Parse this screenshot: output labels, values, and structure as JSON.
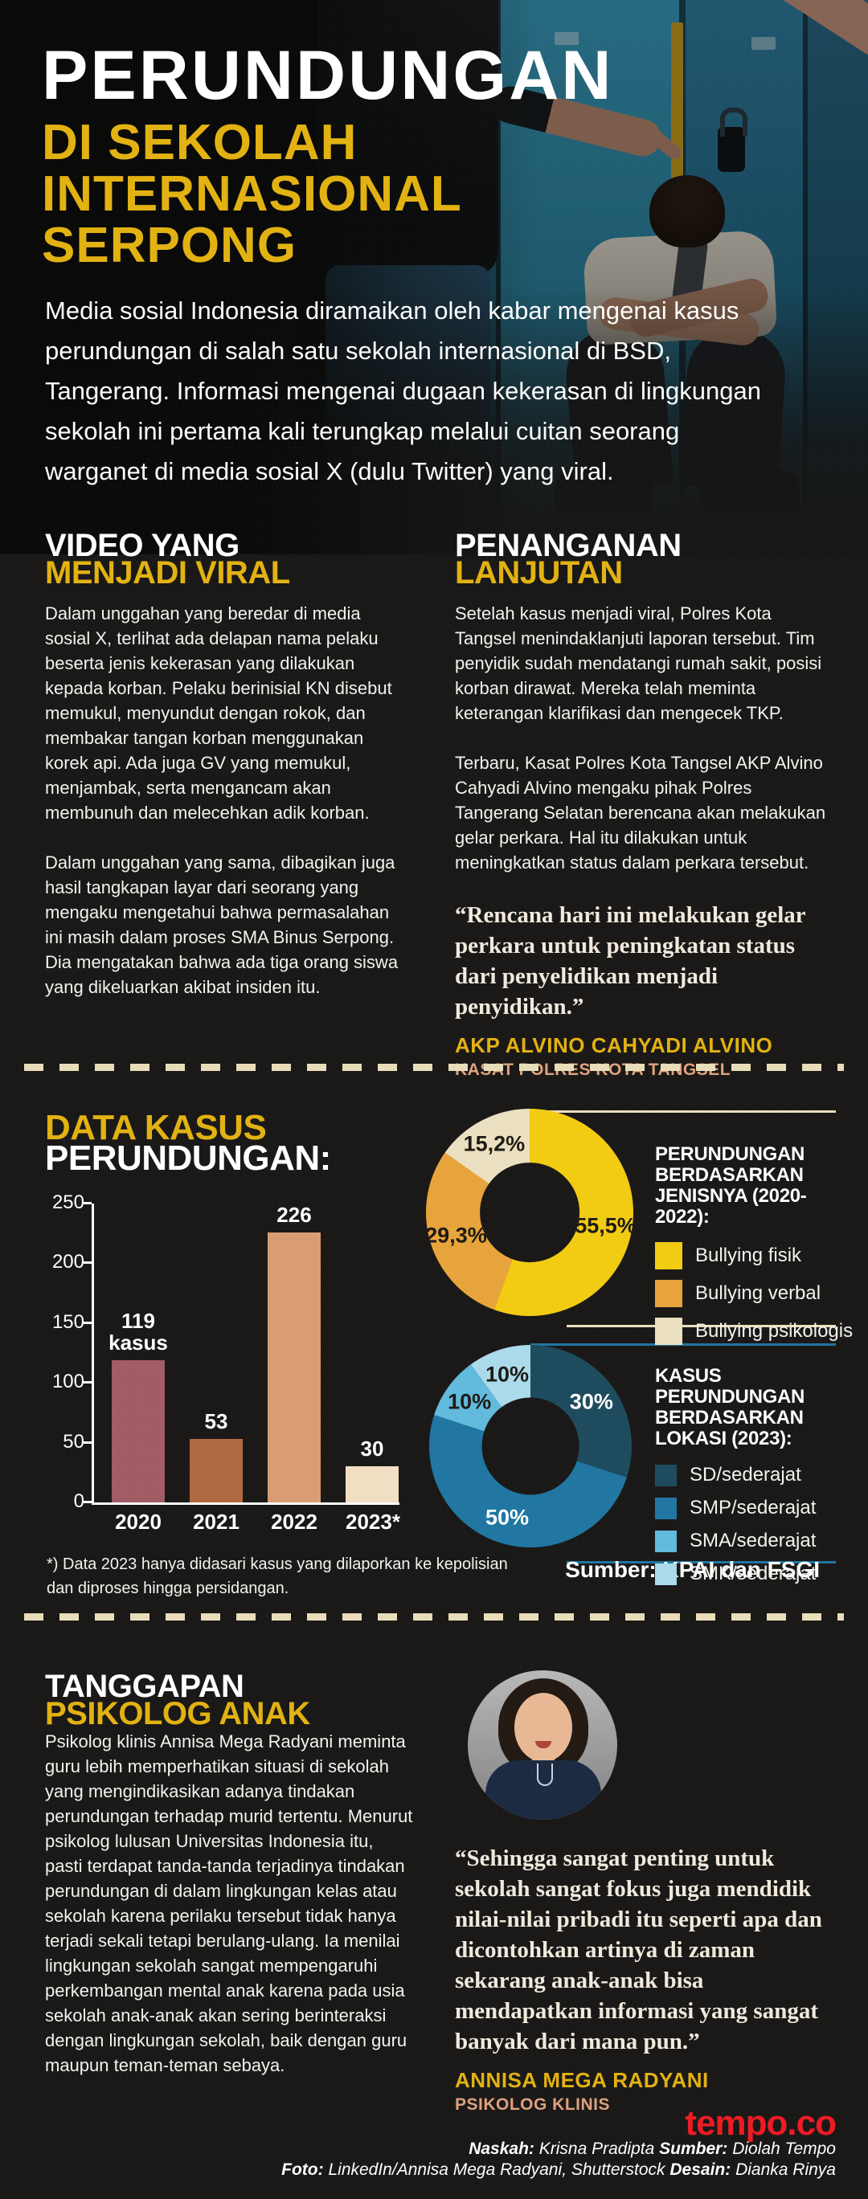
{
  "hero": {
    "title_line1": "PERUNDUNGAN",
    "title_line2": "DI SEKOLAH",
    "title_line3": "INTERNASIONAL",
    "title_line4": "SERPONG",
    "intro": "Media sosial Indonesia diramaikan oleh kabar mengenai kasus perundungan di salah satu sekolah internasional di BSD, Tangerang. Informasi mengenai dugaan kekerasan di lingkungan sekolah ini pertama kali terungkap melalui cuitan seorang warganet di media sosial X (dulu Twitter) yang viral."
  },
  "colors": {
    "accent_yellow": "#e2b212",
    "attr_name_yellow": "#e3b112",
    "attr_role_salmon": "#dfa17e",
    "dashed_cream": "#e9ddb9",
    "tempo_red": "#ed1b24",
    "background": "#1a1918"
  },
  "sections": {
    "viral": {
      "heading_line1": "VIDEO YANG",
      "heading_line2": "MENJADI VIRAL",
      "para1": "Dalam unggahan yang beredar di media sosial X, terlihat ada delapan nama pelaku beserta jenis kekerasan yang dilakukan kepada korban. Pelaku berinisial KN disebut memukul, menyundut dengan rokok, dan membakar tangan korban menggunakan korek api. Ada juga GV yang memukul, menjambak, serta mengancam akan membunuh dan melecehkan adik korban.",
      "para2": "Dalam unggahan yang sama, dibagikan juga hasil tangkapan layar dari seorang yang mengaku mengetahui bahwa permasalahan ini masih dalam proses SMA Binus Serpong. Dia mengatakan bahwa ada tiga orang siswa yang dikeluarkan akibat insiden itu."
    },
    "penanganan": {
      "heading_line1": "PENANGANAN",
      "heading_line2": "LANJUTAN",
      "para1": "Setelah kasus menjadi viral, Polres Kota Tangsel menindaklanjuti laporan tersebut. Tim penyidik sudah mendatangi rumah sakit, posisi korban dirawat. Mereka telah meminta keterangan klarifikasi dan mengecek TKP.",
      "para2": "Terbaru, Kasat Polres Kota Tangsel AKP Alvino Cahyadi Alvino mengaku pihak Polres Tangerang Selatan berencana akan melakukan gelar perkara. Hal itu dilakukan untuk meningkatkan status dalam perkara tersebut.",
      "quote": "“Rencana hari ini melakukan gelar perkara untuk peningkatan status dari penyelidikan menjadi penyidikan.”",
      "quote_name": "AKP ALVINO CAHYADI ALVINO",
      "quote_role": "KASAT POLRES KOTA TANGSEL"
    },
    "data": {
      "heading_line1": "DATA KASUS",
      "heading_line2": "PERUNDUNGAN:",
      "footnote": "*) Data 2023 hanya didasari kasus yang dilaporkan ke kepolisian\ndan diproses hingga persidangan.",
      "source": "Sumber: KPAI dan FSGI"
    },
    "tanggapan": {
      "heading_line1": "TANGGAPAN",
      "heading_line2": "PSIKOLOG ANAK",
      "para": "Psikolog klinis Annisa Mega Radyani meminta guru lebih memperhatikan situasi di sekolah yang mengindikasikan adanya tindakan perundungan terhadap murid tertentu. Menurut psikolog lulusan Universitas Indonesia itu, pasti terdapat tanda-tanda terjadinya tindakan perundungan di dalam lingkungan kelas atau sekolah karena perilaku tersebut tidak hanya terjadi sekali tetapi berulang-ulang. Ia menilai lingkungan sekolah sangat mempengaruhi perkembangan mental anak karena pada usia sekolah anak-anak akan sering berinteraksi dengan lingkungan sekolah, baik dengan guru maupun teman-teman sebaya.",
      "quote": "“Sehingga sangat penting untuk sekolah sangat fokus juga mendidik nilai-nilai pribadi itu seperti apa dan dicontohkan artinya di zaman sekarang anak-anak bisa mendapatkan informasi yang sangat banyak dari mana pun.”",
      "quote_name": "ANNISA MEGA RADYANI",
      "quote_role": "PSIKOLOG KLINIS"
    }
  },
  "chart_data": [
    {
      "type": "bar",
      "title": "DATA KASUS PERUNDUNGAN:",
      "categories": [
        "2020",
        "2021",
        "2022",
        "2023*"
      ],
      "values": [
        119,
        53,
        226,
        30
      ],
      "value_labels": [
        "119\nkasus",
        "53",
        "226",
        "30"
      ],
      "bar_colors": [
        "#a25c66",
        "#b06a41",
        "#d89e72",
        "#f2dec2"
      ],
      "xlabel": "",
      "ylabel": "",
      "ylim": [
        0,
        250
      ],
      "yticks": [
        0,
        50,
        100,
        150,
        200,
        250
      ],
      "grid": false
    },
    {
      "type": "pie",
      "donut": true,
      "title": "PERUNDUNGAN BERDASARKAN JENISNYA (2020-2022):",
      "labels": [
        "Bullying fisik",
        "Bullying verbal",
        "Bullying psikologis"
      ],
      "values": [
        55.5,
        29.3,
        15.2
      ],
      "value_labels": [
        "55,5%",
        "29,3%",
        "15,2%"
      ],
      "colors": [
        "#f2cb13",
        "#e8a43c",
        "#eadfc0"
      ],
      "legend_position": "right",
      "start_angle_deg": 0
    },
    {
      "type": "pie",
      "donut": true,
      "title": "KASUS PERUNDUNGAN BERDASARKAN LOKASI (2023):",
      "labels": [
        "SD/sederajat",
        "SMP/sederajat",
        "SMA/sederajat",
        "SMK/sederajat"
      ],
      "values": [
        30,
        50,
        10,
        10
      ],
      "value_labels": [
        "30%",
        "50%",
        "10%",
        "10%"
      ],
      "colors": [
        "#1e4c5e",
        "#2176a2",
        "#62badc",
        "#abdaea"
      ],
      "legend_position": "right",
      "start_angle_deg": 0
    }
  ],
  "footer": {
    "logo_text": "tempo.co",
    "credits": {
      "naskah_label": "Naskah:",
      "naskah_text": "Krisna Pradipta",
      "sumber_label": "Sumber:",
      "sumber_text": "Diolah Tempo",
      "foto_label": "Foto:",
      "foto_text": "LinkedIn/Annisa Mega Radyani, Shutterstock",
      "desain_label": "Desain:",
      "desain_text": "Dianka Rinya"
    }
  }
}
